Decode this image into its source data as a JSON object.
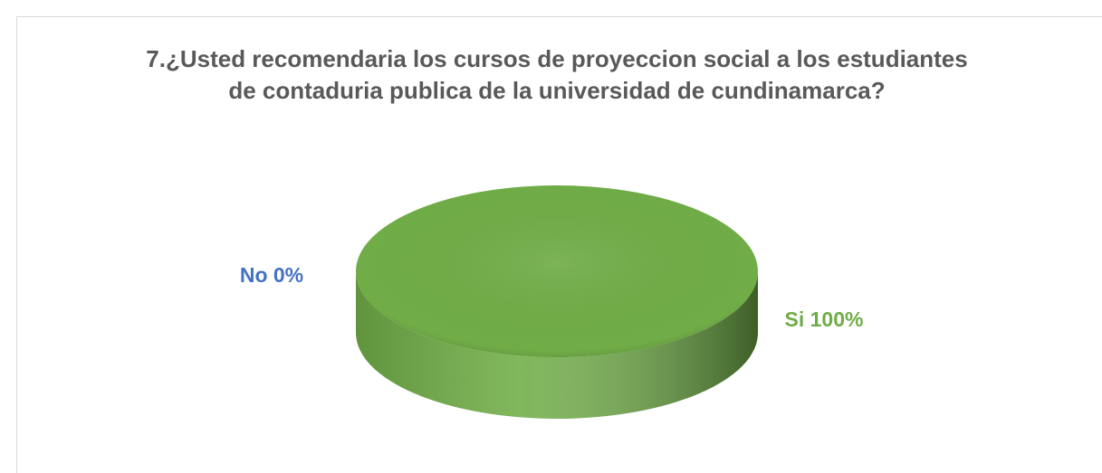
{
  "chart_data": {
    "type": "pie",
    "title": "7.¿Usted recomendaria los cursos de proyeccion social a los estudiantes de contaduria publica de la universidad de cundinamarca?",
    "categories": [
      "No",
      "Si"
    ],
    "values": [
      0,
      100
    ],
    "value_labels": [
      "No 0%",
      "Si 100%"
    ],
    "colors": [
      "#4472c4",
      "#70ad47"
    ]
  }
}
